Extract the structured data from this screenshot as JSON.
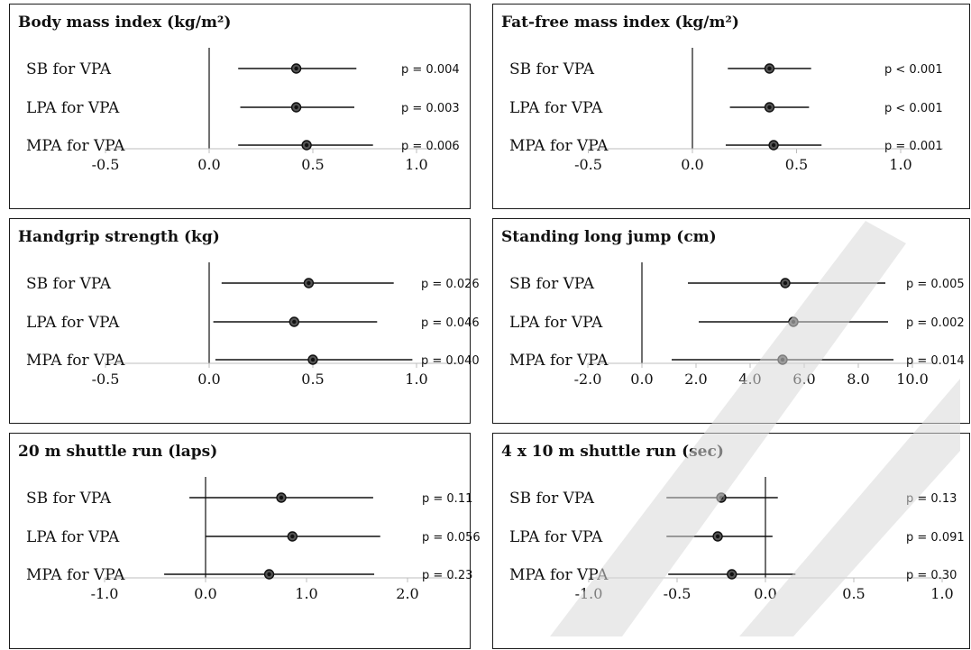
{
  "chart_data": [
    {
      "type": "forest",
      "title": "Body mass index (kg/m²)",
      "rows": [
        "SB for VPA",
        "LPA for VPA",
        "MPA for VPA"
      ],
      "estimates": [
        0.42,
        0.42,
        0.47
      ],
      "ci_low": [
        0.14,
        0.15,
        0.14
      ],
      "ci_high": [
        0.71,
        0.7,
        0.79
      ],
      "p_values": [
        "p = 0.004",
        "p = 0.003",
        "p = 0.006"
      ],
      "xticks": [
        -0.5,
        0.0,
        0.5,
        1.0
      ],
      "xtick_labels": [
        "-0.5",
        "0.0",
        "0.5",
        "1.0"
      ],
      "xlim": [
        -0.5,
        1.2
      ]
    },
    {
      "type": "forest",
      "title": "Fat-free mass index (kg/m²)",
      "rows": [
        "SB for VPA",
        "LPA for VPA",
        "MPA for VPA"
      ],
      "estimates": [
        0.37,
        0.37,
        0.39
      ],
      "ci_low": [
        0.17,
        0.18,
        0.16
      ],
      "ci_high": [
        0.57,
        0.56,
        0.62
      ],
      "p_values": [
        "p < 0.001",
        "p < 0.001",
        "p = 0.001"
      ],
      "xticks": [
        -0.5,
        0.0,
        0.5,
        1.0
      ],
      "xtick_labels": [
        "-0.5",
        "0.0",
        "0.5",
        "1.0"
      ],
      "xlim": [
        -0.5,
        1.2
      ]
    },
    {
      "type": "forest",
      "title": "Handgrip strength (kg)",
      "rows": [
        "SB for VPA",
        "LPA for VPA",
        "MPA for VPA"
      ],
      "estimates": [
        0.48,
        0.41,
        0.5
      ],
      "ci_low": [
        0.06,
        0.02,
        0.03
      ],
      "ci_high": [
        0.89,
        0.81,
        0.98
      ],
      "p_values": [
        "p = 0.026",
        "p = 0.046",
        "p = 0.040"
      ],
      "xticks": [
        -0.5,
        0.0,
        0.5,
        1.0
      ],
      "xtick_labels": [
        "-0.5",
        "0.0",
        "0.5",
        "1.0"
      ],
      "xlim": [
        -0.5,
        1.2
      ]
    },
    {
      "type": "forest",
      "title": "Standing long jump (cm)",
      "rows": [
        "SB for VPA",
        "LPA for VPA",
        "MPA for VPA"
      ],
      "estimates": [
        5.3,
        5.6,
        5.2
      ],
      "ci_low": [
        1.7,
        2.1,
        1.1
      ],
      "ci_high": [
        9.0,
        9.1,
        9.3
      ],
      "p_values": [
        "p = 0.005",
        "p = 0.002",
        "p = 0.014"
      ],
      "xticks": [
        -2.0,
        0.0,
        2.0,
        4.0,
        6.0,
        8.0,
        10.0
      ],
      "xtick_labels": [
        "-2.0",
        "0.0",
        "2.0",
        "4.0",
        "6.0",
        "8.0",
        "10.0"
      ],
      "xlim": [
        -2.0,
        11.0
      ]
    },
    {
      "type": "forest",
      "title": "20 m shuttle run (laps)",
      "rows": [
        "SB for VPA",
        "LPA for VPA",
        "MPA for VPA"
      ],
      "estimates": [
        0.75,
        0.86,
        0.63
      ],
      "ci_low": [
        -0.16,
        0.0,
        -0.41
      ],
      "ci_high": [
        1.66,
        1.73,
        1.67
      ],
      "p_values": [
        "p = 0.11",
        "p = 0.056",
        "p = 0.23"
      ],
      "xticks": [
        -1.0,
        0.0,
        1.0,
        2.0
      ],
      "xtick_labels": [
        "-1.0",
        "0.0",
        "1.0",
        "2.0"
      ],
      "xlim": [
        -1.0,
        2.5
      ]
    },
    {
      "type": "forest",
      "title": "4 x 10 m shuttle run (sec)",
      "rows": [
        "SB for VPA",
        "LPA for VPA",
        "MPA for VPA"
      ],
      "estimates": [
        -0.25,
        -0.27,
        -0.19
      ],
      "ci_low": [
        -0.56,
        -0.56,
        -0.55
      ],
      "ci_high": [
        0.07,
        0.04,
        0.17
      ],
      "p_values": [
        "p = 0.13",
        "p = 0.091",
        "p = 0.30"
      ],
      "xticks": [
        -1.0,
        -0.5,
        0.0,
        0.5,
        1.0
      ],
      "xtick_labels": [
        "-1.0",
        "-0.5",
        "0.0",
        "0.5",
        "1.0"
      ],
      "xlim": [
        -1.0,
        1.0
      ]
    }
  ]
}
